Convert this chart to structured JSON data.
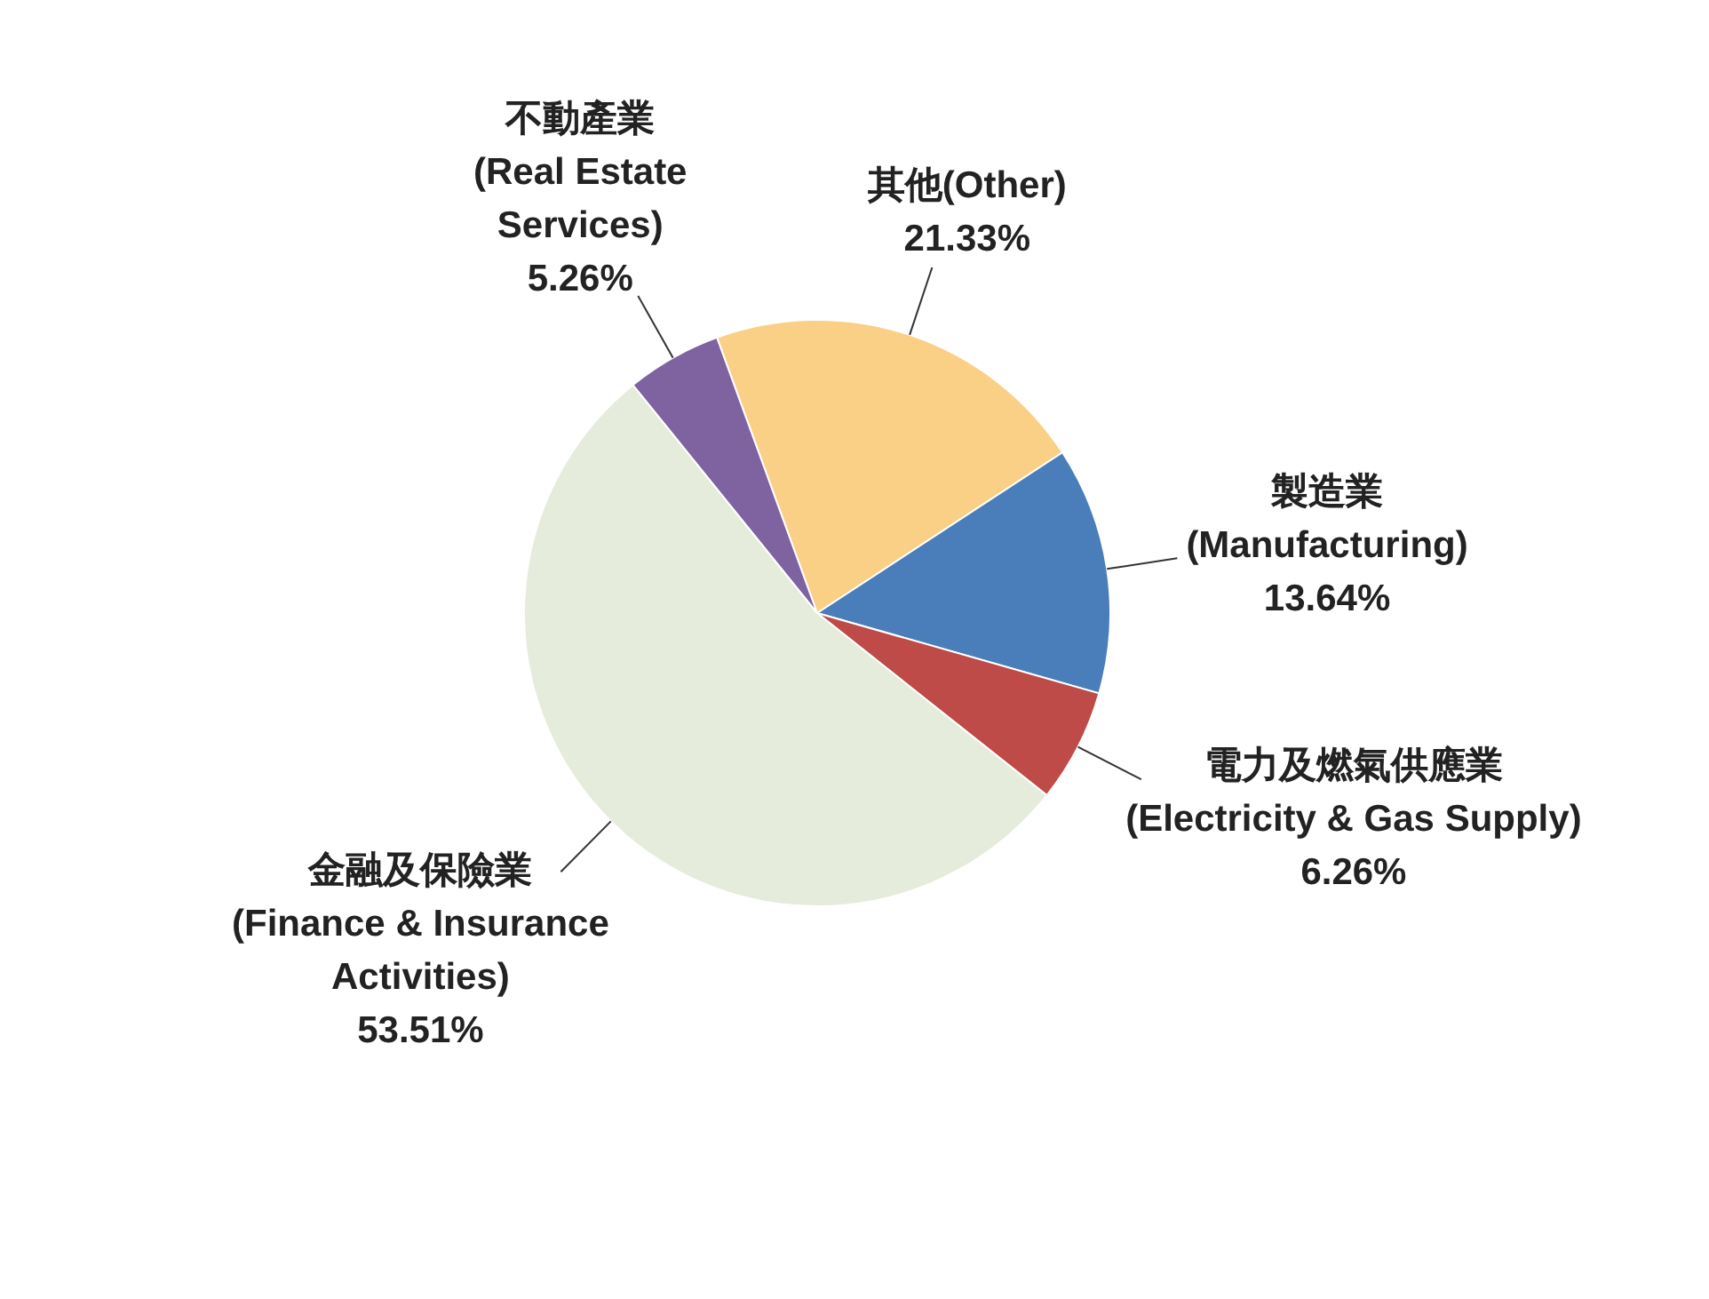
{
  "chart_data": {
    "type": "pie",
    "categories": [
      "其他(Other)",
      "製造業\n(Manufacturing)",
      "電力及燃氣供應業\n(Electricity & Gas Supply)",
      "金融及保險業\n(Finance & Insurance\nActivities)",
      "不動產業\n(Real Estate\nServices)"
    ],
    "values": [
      21.33,
      13.64,
      6.26,
      53.51,
      5.26
    ],
    "value_labels": [
      "21.33%",
      "13.64%",
      "6.26%",
      "53.51%",
      "5.26%"
    ],
    "colors": [
      "#f9d085",
      "#4a7ebb",
      "#be4b48",
      "#e6ecdc",
      "#7e63a0"
    ]
  }
}
